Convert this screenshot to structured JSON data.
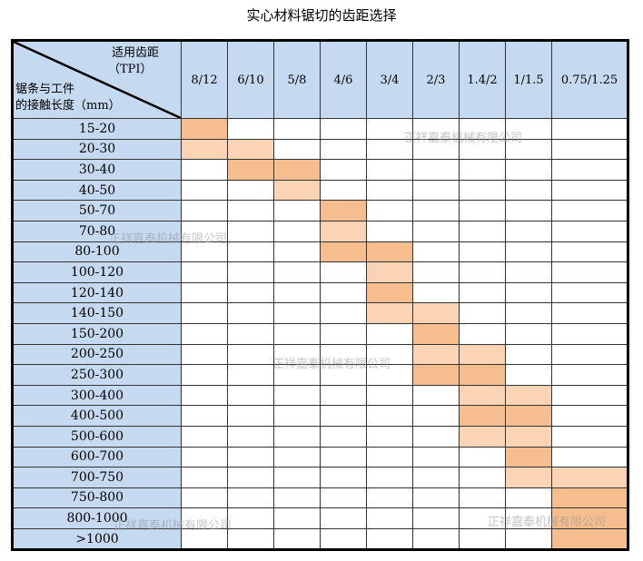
{
  "title": "实心材料锯切的齿距选择",
  "header": {
    "tpi_label": "适用齿距",
    "tpi_unit": "（TPI）",
    "len_label_1": "锯条与工件",
    "len_label_2": "的接触长度（mm）"
  },
  "columns": [
    "8/12",
    "6/10",
    "5/8",
    "4/6",
    "3/4",
    "2/3",
    "1.4/2",
    "1/1.5",
    "0.75/1.25"
  ],
  "rows": [
    {
      "label": "15-20",
      "cells": [
        "D",
        "",
        "",
        "",
        "",
        "",
        "",
        "",
        ""
      ]
    },
    {
      "label": "20-30",
      "cells": [
        "L",
        "L",
        "",
        "",
        "",
        "",
        "",
        "",
        ""
      ]
    },
    {
      "label": "30-40",
      "cells": [
        "",
        "D",
        "D",
        "",
        "",
        "",
        "",
        "",
        ""
      ]
    },
    {
      "label": "40-50",
      "cells": [
        "",
        "",
        "L",
        "",
        "",
        "",
        "",
        "",
        ""
      ]
    },
    {
      "label": "50-70",
      "cells": [
        "",
        "",
        "",
        "D",
        "",
        "",
        "",
        "",
        ""
      ]
    },
    {
      "label": "70-80",
      "cells": [
        "",
        "",
        "",
        "L",
        "",
        "",
        "",
        "",
        ""
      ]
    },
    {
      "label": "80-100",
      "cells": [
        "",
        "",
        "",
        "D",
        "D",
        "",
        "",
        "",
        ""
      ]
    },
    {
      "label": "100-120",
      "cells": [
        "",
        "",
        "",
        "",
        "L",
        "",
        "",
        "",
        ""
      ]
    },
    {
      "label": "120-140",
      "cells": [
        "",
        "",
        "",
        "",
        "D",
        "",
        "",
        "",
        ""
      ]
    },
    {
      "label": "140-150",
      "cells": [
        "",
        "",
        "",
        "",
        "L",
        "L",
        "",
        "",
        ""
      ]
    },
    {
      "label": "150-200",
      "cells": [
        "",
        "",
        "",
        "",
        "",
        "D",
        "",
        "",
        ""
      ]
    },
    {
      "label": "200-250",
      "cells": [
        "",
        "",
        "",
        "",
        "",
        "L",
        "L",
        "",
        ""
      ]
    },
    {
      "label": "250-300",
      "cells": [
        "",
        "",
        "",
        "",
        "",
        "D",
        "D",
        "",
        ""
      ]
    },
    {
      "label": "300-400",
      "cells": [
        "",
        "",
        "",
        "",
        "",
        "",
        "L",
        "L",
        ""
      ]
    },
    {
      "label": "400-500",
      "cells": [
        "",
        "",
        "",
        "",
        "",
        "",
        "D",
        "D",
        ""
      ]
    },
    {
      "label": "500-600",
      "cells": [
        "",
        "",
        "",
        "",
        "",
        "",
        "L",
        "L",
        ""
      ]
    },
    {
      "label": "600-700",
      "cells": [
        "",
        "",
        "",
        "",
        "",
        "",
        "",
        "D",
        ""
      ]
    },
    {
      "label": "700-750",
      "cells": [
        "",
        "",
        "",
        "",
        "",
        "",
        "",
        "L",
        "L"
      ]
    },
    {
      "label": "750-800",
      "cells": [
        "",
        "",
        "",
        "",
        "",
        "",
        "",
        "",
        "D"
      ]
    },
    {
      "label": "800-1000",
      "cells": [
        "",
        "",
        "",
        "",
        "",
        "",
        "",
        "",
        "D"
      ]
    },
    {
      "label": ">1000",
      "cells": [
        "",
        "",
        "",
        "",
        "",
        "",
        "",
        "",
        "D"
      ]
    }
  ],
  "colors": {
    "header_bg": "#c5d9f0",
    "dark": "#f6be8e",
    "light": "#fad4b4"
  },
  "watermark": "正祥嘉泰机械有限公司"
}
